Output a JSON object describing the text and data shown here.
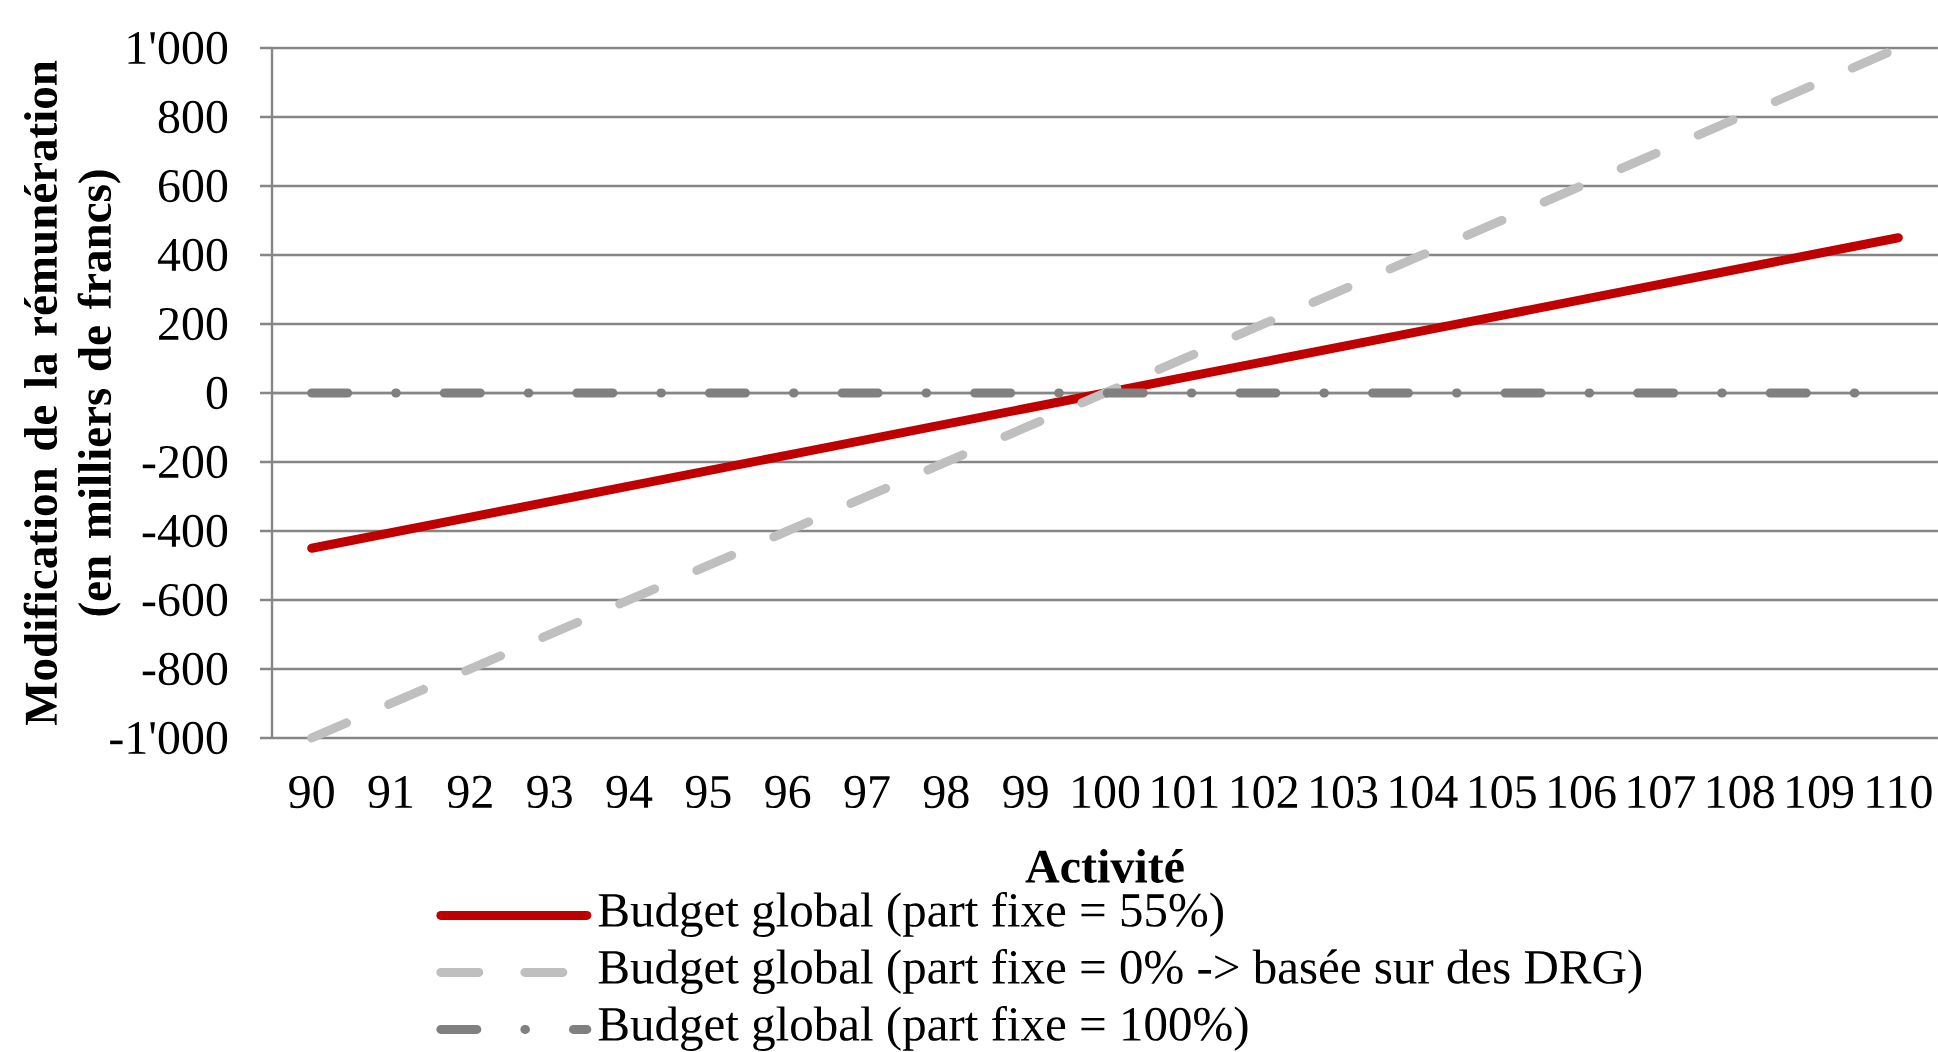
{
  "chart_data": {
    "type": "line",
    "xlabel": "Activité",
    "ylabel": "Modification de la rémunération (en milliers de francs)",
    "categories": [
      "90",
      "91",
      "92",
      "93",
      "94",
      "95",
      "96",
      "97",
      "98",
      "99",
      "100",
      "101",
      "102",
      "103",
      "104",
      "105",
      "106",
      "107",
      "108",
      "109",
      "110"
    ],
    "series": [
      {
        "name": "Budget global (part fixe = 55%)",
        "color": "#c00000",
        "line_style": "solid",
        "values": [
          -450,
          -405,
          -360,
          -315,
          -270,
          -225,
          -180,
          -135,
          -90,
          -45,
          0,
          45,
          90,
          135,
          180,
          225,
          270,
          315,
          360,
          405,
          450
        ]
      },
      {
        "name": "Budget global (part fixe = 0% -> basée sur des DRG)",
        "color": "#bfbfbf",
        "line_style": "dashed",
        "values": [
          -1000,
          -900,
          -800,
          -700,
          -600,
          -500,
          -400,
          -300,
          -200,
          -100,
          0,
          100,
          200,
          300,
          400,
          500,
          600,
          700,
          800,
          900,
          1000
        ]
      },
      {
        "name": "Budget global (part fixe = 100%)",
        "color": "#808080",
        "line_style": "dashdot",
        "values": [
          0,
          0,
          0,
          0,
          0,
          0,
          0,
          0,
          0,
          0,
          0,
          0,
          0,
          0,
          0,
          0,
          0,
          0,
          0,
          0,
          0
        ]
      }
    ],
    "ylim": [
      -1000,
      1000
    ],
    "yticks": [
      {
        "value": -1000,
        "label": "-1'000"
      },
      -800,
      -600,
      -400,
      -200,
      0,
      200,
      400,
      600,
      800,
      {
        "value": 1000,
        "label": "1'000"
      }
    ],
    "grid": "y",
    "legend": "bottom",
    "marker": "none"
  }
}
